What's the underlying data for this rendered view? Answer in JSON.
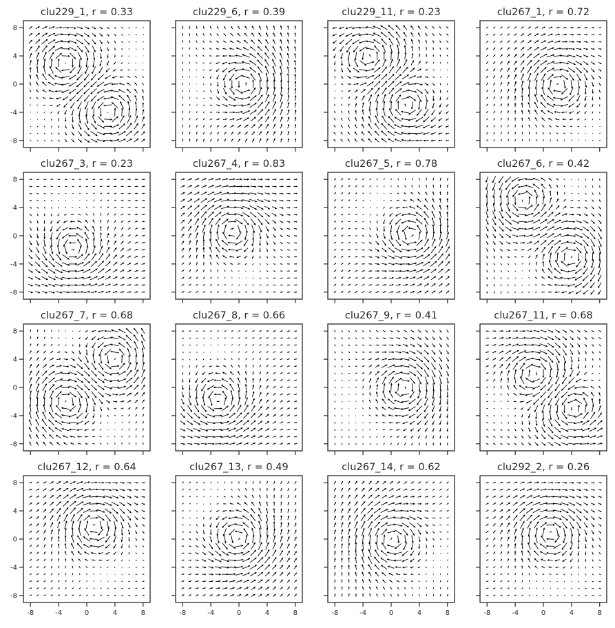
{
  "chart_data": {
    "type": "quiver",
    "xlim": [
      -9,
      9
    ],
    "ylim": [
      -9,
      9
    ],
    "x_ticks": [
      -8,
      -4,
      0,
      4,
      8
    ],
    "y_ticks": [
      -8,
      -4,
      0,
      4,
      8
    ],
    "grid": false,
    "arrow_color": "#000000",
    "panels": [
      {
        "title": "clu229_1, r = 0.33",
        "vortices": [
          {
            "x": -3,
            "y": 3,
            "s": -1
          },
          {
            "x": 3,
            "y": -4,
            "s": 1
          }
        ],
        "uniform": [
          0.3,
          0
        ]
      },
      {
        "title": "clu229_6, r = 0.39",
        "vortices": [
          {
            "x": 1,
            "y": 0,
            "s": 1
          }
        ],
        "uniform": [
          0,
          0.8
        ]
      },
      {
        "title": "clu229_11, r = 0.23",
        "vortices": [
          {
            "x": -3,
            "y": 4,
            "s": 1
          },
          {
            "x": 2,
            "y": -3,
            "s": -1
          }
        ],
        "uniform": [
          -0.5,
          0.4
        ]
      },
      {
        "title": "clu267_1, r = 0.72",
        "vortices": [
          {
            "x": 2,
            "y": 0,
            "s": -1
          }
        ],
        "uniform": [
          0.4,
          0.3
        ]
      },
      {
        "title": "clu267_3, r = 0.23",
        "vortices": [
          {
            "x": -2,
            "y": -2,
            "s": 1
          }
        ],
        "uniform": [
          0.8,
          0
        ]
      },
      {
        "title": "clu267_4, r = 0.83",
        "vortices": [
          {
            "x": -1,
            "y": 1,
            "s": -1
          }
        ],
        "uniform": [
          0.8,
          0.2
        ]
      },
      {
        "title": "clu267_5, r = 0.78",
        "vortices": [
          {
            "x": 3,
            "y": 0,
            "s": 1
          }
        ],
        "uniform": [
          0.5,
          0.5
        ]
      },
      {
        "title": "clu267_6, r = 0.42",
        "vortices": [
          {
            "x": -3,
            "y": 5,
            "s": 1
          },
          {
            "x": 4,
            "y": -3,
            "s": -1
          }
        ],
        "uniform": [
          0,
          -0.6
        ]
      },
      {
        "title": "clu267_7, r = 0.68",
        "vortices": [
          {
            "x": 4,
            "y": 4,
            "s": 1
          },
          {
            "x": -3,
            "y": -2,
            "s": -1
          }
        ],
        "uniform": [
          0,
          0.6
        ]
      },
      {
        "title": "clu267_8, r = 0.66",
        "vortices": [
          {
            "x": -3,
            "y": -2,
            "s": 1
          }
        ],
        "uniform": [
          0.7,
          0.1
        ]
      },
      {
        "title": "clu267_9, r = 0.41",
        "vortices": [
          {
            "x": 2,
            "y": 0,
            "s": -1
          }
        ],
        "uniform": [
          0.2,
          -0.5
        ]
      },
      {
        "title": "clu267_11, r = 0.68",
        "vortices": [
          {
            "x": -1,
            "y": 2,
            "s": -1
          },
          {
            "x": 4,
            "y": -3,
            "s": 1
          }
        ],
        "uniform": [
          0.6,
          -0.3
        ]
      },
      {
        "title": "clu267_12, r = 0.64",
        "vortices": [
          {
            "x": 1,
            "y": 2,
            "s": -1
          }
        ],
        "uniform": [
          0.6,
          0.2
        ]
      },
      {
        "title": "clu267_13, r = 0.49",
        "vortices": [
          {
            "x": 0,
            "y": 0,
            "s": 1
          }
        ],
        "uniform": [
          0.5,
          0.5
        ]
      },
      {
        "title": "clu267_14, r = 0.62",
        "vortices": [
          {
            "x": 0,
            "y": 0,
            "s": -1
          }
        ],
        "uniform": [
          0.3,
          0.6
        ]
      },
      {
        "title": "clu292_2, r = 0.26",
        "vortices": [
          {
            "x": 1,
            "y": 1,
            "s": -1
          }
        ],
        "uniform": [
          0.6,
          0.1
        ]
      }
    ]
  }
}
